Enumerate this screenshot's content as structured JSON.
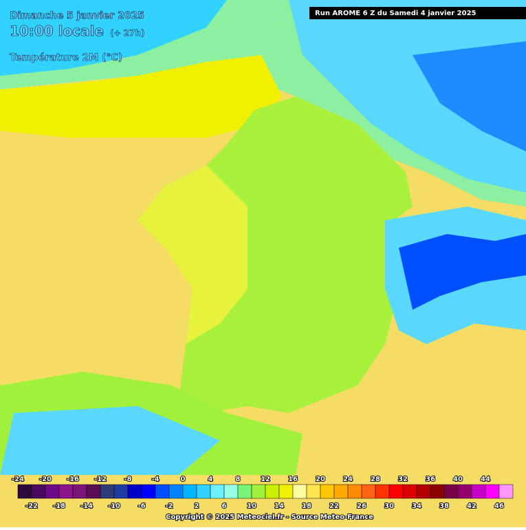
{
  "header": {
    "day": "Dimanche 5 janvier 2025",
    "time": "10:00 locale",
    "offset": "(+ 27h)",
    "parameter": "Température 2M (°C)",
    "run": "Run AROME 6 Z du Samedi 4 janvier 2025"
  },
  "legend": {
    "items": [
      {
        "value": -24,
        "color": "#2d0a3c"
      },
      {
        "value": -22,
        "color": "#4b0a5f"
      },
      {
        "value": -20,
        "color": "#6e0a87"
      },
      {
        "value": -18,
        "color": "#8c148c"
      },
      {
        "value": -16,
        "color": "#7a1478"
      },
      {
        "value": -14,
        "color": "#5a0f55"
      },
      {
        "value": -12,
        "color": "#2d3c78"
      },
      {
        "value": -10,
        "color": "#1e3ca0"
      },
      {
        "value": -8,
        "color": "#0000c8"
      },
      {
        "value": -6,
        "color": "#0000ff"
      },
      {
        "value": -4,
        "color": "#0050ff"
      },
      {
        "value": -2,
        "color": "#0082ff"
      },
      {
        "value": 0,
        "color": "#00b4ff"
      },
      {
        "value": 2,
        "color": "#32d2ff"
      },
      {
        "value": 4,
        "color": "#6ef0ff"
      },
      {
        "value": 6,
        "color": "#96ffe6"
      },
      {
        "value": 8,
        "color": "#78f578"
      },
      {
        "value": 10,
        "color": "#a0f03c"
      },
      {
        "value": 12,
        "color": "#c8f000"
      },
      {
        "value": 14,
        "color": "#f0f000"
      },
      {
        "value": 16,
        "color": "#ffffa0"
      },
      {
        "value": 18,
        "color": "#ffe650"
      },
      {
        "value": 20,
        "color": "#ffc800"
      },
      {
        "value": 22,
        "color": "#ffaa00"
      },
      {
        "value": 24,
        "color": "#ff8c00"
      },
      {
        "value": 26,
        "color": "#ff6414"
      },
      {
        "value": 28,
        "color": "#ff3200"
      },
      {
        "value": 30,
        "color": "#ff0000"
      },
      {
        "value": 32,
        "color": "#dc0000"
      },
      {
        "value": 34,
        "color": "#b40000"
      },
      {
        "value": 36,
        "color": "#8c0000"
      },
      {
        "value": 38,
        "color": "#780046"
      },
      {
        "value": 40,
        "color": "#96006e"
      },
      {
        "value": 42,
        "color": "#c800c8"
      },
      {
        "value": 44,
        "color": "#ff00ff"
      },
      {
        "value": 46,
        "color": "#ff96ff"
      }
    ]
  },
  "footer": {
    "copyright": "Copyright © 2025 Meteociel.fr - Source Meteo-France"
  }
}
